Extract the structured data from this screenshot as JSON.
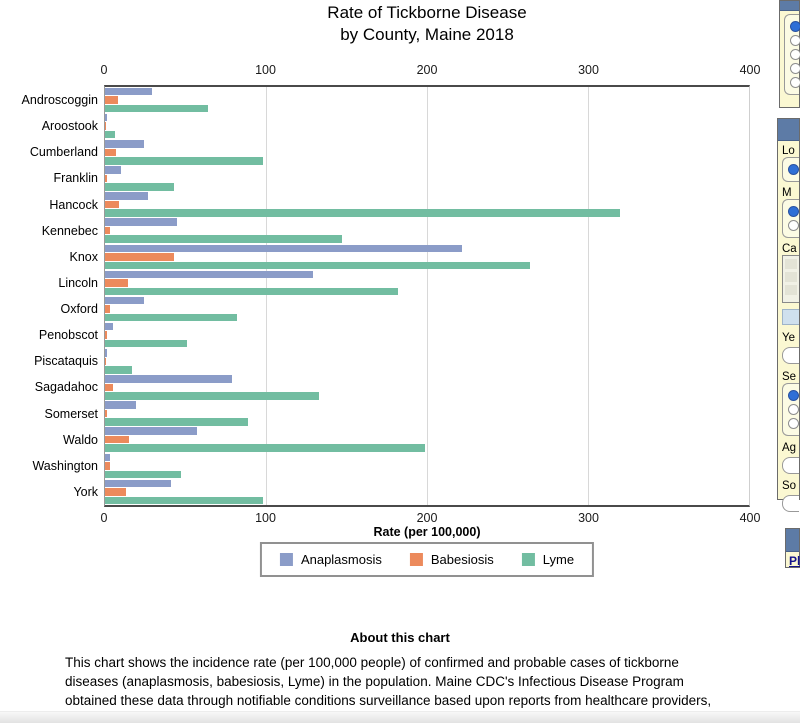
{
  "title": {
    "line1": "Rate of Tickborne Disease",
    "line2": "by County, Maine 2018"
  },
  "chart_data": {
    "type": "bar",
    "orientation": "horizontal",
    "title": "Rate of Tickborne Disease by County, Maine 2018",
    "xlabel": "Rate (per 100,000)",
    "xlim": [
      0,
      400
    ],
    "xticks": [
      "0",
      "100",
      "200",
      "300",
      "400"
    ],
    "grid": true,
    "legend_position": "bottom",
    "categories": [
      "Androscoggin",
      "Aroostook",
      "Cumberland",
      "Franklin",
      "Hancock",
      "Kennebec",
      "Knox",
      "Lincoln",
      "Oxford",
      "Penobscot",
      "Piscataquis",
      "Sagadahoc",
      "Somerset",
      "Waldo",
      "Washington",
      "York"
    ],
    "series": [
      {
        "name": "Anaplasmosis",
        "color": "#8b9cc8",
        "values": [
          29,
          1,
          24,
          10,
          27,
          45,
          222,
          129,
          24,
          5,
          1,
          79,
          19,
          57,
          3,
          41
        ]
      },
      {
        "name": "Babesiosis",
        "color": "#ec8a5c",
        "values": [
          8,
          0.5,
          7,
          1,
          9,
          3,
          43,
          14,
          3,
          1,
          0.5,
          5,
          1,
          15,
          3,
          13
        ]
      },
      {
        "name": "Lyme",
        "color": "#72bda1",
        "values": [
          64,
          6,
          98,
          43,
          320,
          147,
          264,
          182,
          82,
          51,
          17,
          133,
          89,
          199,
          47,
          98
        ]
      }
    ]
  },
  "about": {
    "heading": "About this chart",
    "body": "This chart shows the incidence rate (per 100,000 people) of confirmed and probable cases of tickborne diseases (anaplasmosis, babesiosis, Lyme) in the population. Maine CDC's Infectious Disease Program obtained these data through notifiable conditions surveillance based upon reports from healthcare providers, laboratories, and other healthcare partners."
  },
  "side_panel": {
    "location_label": "Lo",
    "measure_label": "M",
    "category_label": "Ca",
    "year_label": "Ye",
    "sex_label": "Se",
    "age_label": "Ag",
    "source_label": "So",
    "plot_link_label": "Pl"
  },
  "colors": {
    "anaplasmosis": "#8b9cc8",
    "babesiosis": "#ec8a5c",
    "lyme": "#72bda1",
    "panel_header": "#5d7ba6",
    "panel_bg": "#fbf8d2",
    "radio_selected": "#2f6fd6"
  }
}
